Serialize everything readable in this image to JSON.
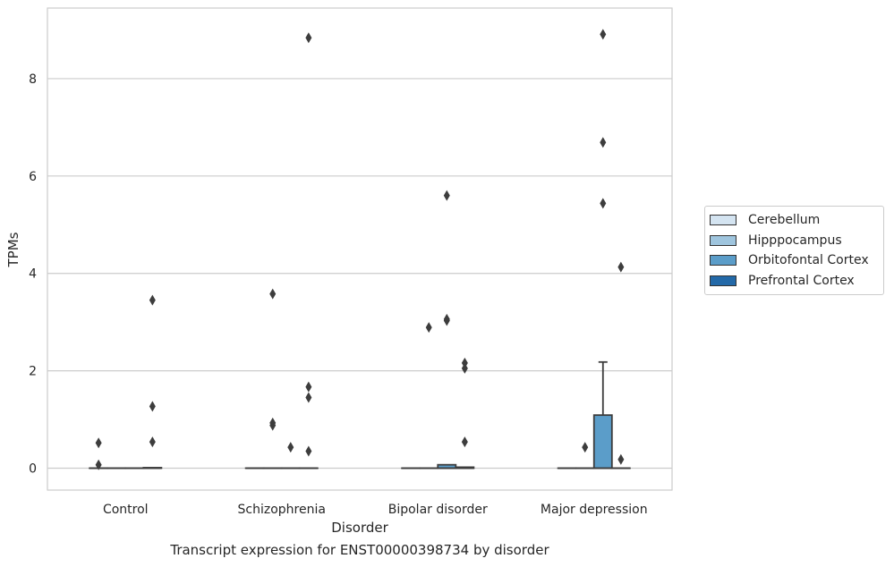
{
  "chart_data": {
    "type": "box",
    "xlabel": "Disorder",
    "ylabel": "TPMs",
    "caption": "Transcript expression for ENST00000398734 by disorder",
    "categories": [
      "Control",
      "Schizophrenia",
      "Bipolar disorder",
      "Major depression"
    ],
    "ylim": [
      -0.45,
      9.45
    ],
    "yticks": [
      0,
      2,
      4,
      6,
      8
    ],
    "grid": true,
    "legend_position": "right",
    "series": [
      {
        "name": "Cerebellum",
        "color": "#d4e4f1",
        "boxes": [
          {
            "q1": 0,
            "median": 0,
            "q3": 0,
            "whisker_low": 0,
            "whisker_high": 0,
            "outliers": [
              0.52,
              0.07
            ]
          },
          {
            "q1": 0,
            "median": 0,
            "q3": 0,
            "whisker_low": 0,
            "whisker_high": 0,
            "outliers": []
          },
          {
            "q1": 0,
            "median": 0,
            "q3": 0,
            "whisker_low": 0,
            "whisker_high": 0,
            "outliers": []
          },
          {
            "q1": 0,
            "median": 0,
            "q3": 0,
            "whisker_low": 0,
            "whisker_high": 0,
            "outliers": []
          }
        ]
      },
      {
        "name": "Hipppocampus",
        "color": "#9fc5de",
        "boxes": [
          {
            "q1": 0,
            "median": 0,
            "q3": 0,
            "whisker_low": 0,
            "whisker_high": 0,
            "outliers": []
          },
          {
            "q1": 0,
            "median": 0,
            "q3": 0,
            "whisker_low": 0,
            "whisker_high": 0,
            "outliers": [
              3.58,
              0.93,
              0.88
            ]
          },
          {
            "q1": 0,
            "median": 0,
            "q3": 0,
            "whisker_low": 0,
            "whisker_high": 0,
            "outliers": [
              2.89
            ]
          },
          {
            "q1": 0,
            "median": 0,
            "q3": 0,
            "whisker_low": 0,
            "whisker_high": 0,
            "outliers": [
              0.43
            ]
          }
        ]
      },
      {
        "name": "Orbitofontal Cortex",
        "color": "#5b9dc9",
        "boxes": [
          {
            "q1": 0,
            "median": 0,
            "q3": 0,
            "whisker_low": 0,
            "whisker_high": 0,
            "outliers": []
          },
          {
            "q1": 0,
            "median": 0,
            "q3": 0,
            "whisker_low": 0,
            "whisker_high": 0,
            "outliers": [
              0.43
            ]
          },
          {
            "q1": 0,
            "median": 0,
            "q3": 0.07,
            "whisker_low": 0,
            "whisker_high": 0.07,
            "outliers": [
              5.6,
              3.06,
              3.03
            ]
          },
          {
            "q1": 0,
            "median": 0,
            "q3": 1.09,
            "whisker_low": 0,
            "whisker_high": 2.18,
            "outliers": [
              8.91,
              6.69,
              5.44
            ]
          }
        ]
      },
      {
        "name": "Prefrontal Cortex",
        "color": "#2369a8",
        "boxes": [
          {
            "q1": 0,
            "median": 0,
            "q3": 0.01,
            "whisker_low": 0,
            "whisker_high": 0.01,
            "outliers": [
              3.45,
              1.27,
              0.54
            ]
          },
          {
            "q1": 0,
            "median": 0,
            "q3": 0,
            "whisker_low": 0,
            "whisker_high": 0,
            "outliers": [
              8.84,
              1.67,
              1.45,
              0.35
            ]
          },
          {
            "q1": 0,
            "median": 0,
            "q3": 0.02,
            "whisker_low": 0,
            "whisker_high": 0.02,
            "outliers": [
              2.16,
              2.05,
              0.54
            ]
          },
          {
            "q1": 0,
            "median": 0,
            "q3": 0,
            "whisker_low": 0,
            "whisker_high": 0,
            "outliers": [
              4.13,
              0.18
            ]
          }
        ]
      }
    ]
  }
}
